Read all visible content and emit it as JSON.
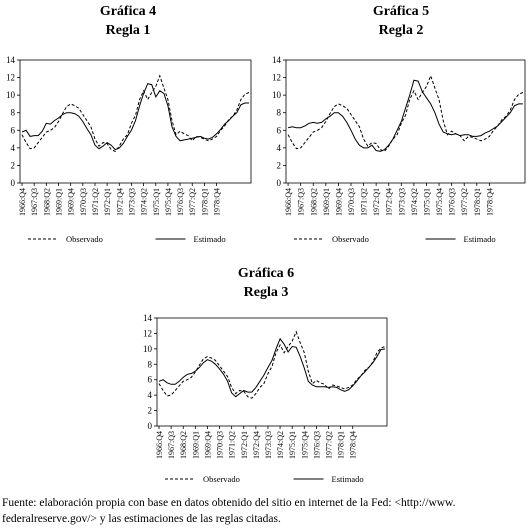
{
  "chart_data": [
    {
      "type": "line",
      "title": "Gráfica 4",
      "subtitle": "Regla 1",
      "ylim": [
        0,
        14
      ],
      "yticks": [
        0,
        2,
        4,
        6,
        8,
        10,
        12,
        14
      ],
      "xtick_labels": [
        "1966:Q4",
        "1967:Q3",
        "1968:Q2",
        "1969:Q1",
        "1969:Q4",
        "1970:Q3",
        "1971:Q2",
        "1972:Q1",
        "1972:Q4",
        "1973:Q3",
        "1974:Q2",
        "1975:Q1",
        "1975:Q4",
        "1976:Q3",
        "1977:Q2",
        "1978:Q1",
        "1978:Q4"
      ],
      "legend_placement": "bottom",
      "series": [
        {
          "name": "Observado",
          "style": "dashed",
          "values": [
            5.5,
            4.6,
            3.9,
            4.0,
            4.6,
            5.2,
            5.8,
            6.0,
            6.3,
            7.0,
            7.9,
            8.7,
            9.0,
            8.8,
            8.5,
            7.8,
            7.1,
            6.4,
            5.0,
            4.2,
            4.6,
            4.5,
            3.8,
            3.6,
            4.2,
            5.0,
            5.5,
            6.8,
            7.7,
            9.5,
            10.5,
            9.5,
            10.3,
            11.0,
            12.2,
            10.8,
            9.5,
            7.1,
            5.5,
            5.9,
            5.6,
            5.4,
            4.8,
            5.3,
            5.2,
            5.0,
            4.8,
            5.0,
            5.3,
            6.0,
            6.5,
            7.2,
            7.6,
            8.3,
            9.5,
            10.1,
            10.3
          ]
        },
        {
          "name": "Estimado",
          "style": "solid",
          "values": [
            5.8,
            6.0,
            5.3,
            5.4,
            5.4,
            5.9,
            6.8,
            6.7,
            7.1,
            7.4,
            7.8,
            8.0,
            8.0,
            7.9,
            7.6,
            7.0,
            6.2,
            5.5,
            4.3,
            3.9,
            4.2,
            4.6,
            4.3,
            3.8,
            4.0,
            4.5,
            5.3,
            6.0,
            7.1,
            8.8,
            10.2,
            11.3,
            11.2,
            9.8,
            10.5,
            10.2,
            8.8,
            6.4,
            5.3,
            4.8,
            4.9,
            5.0,
            5.1,
            5.2,
            5.3,
            5.1,
            5.0,
            5.2,
            5.6,
            6.1,
            6.7,
            7.1,
            7.6,
            8.0,
            8.9,
            9.1,
            9.1
          ]
        }
      ]
    },
    {
      "type": "line",
      "title": "Gráfica 5",
      "subtitle": "Regla 2",
      "ylim": [
        0,
        14
      ],
      "yticks": [
        0,
        2,
        4,
        6,
        8,
        10,
        12,
        14
      ],
      "xtick_labels": [
        "1966:Q4",
        "1967:Q3",
        "1968:Q2",
        "1969:Q1",
        "1969:Q4",
        "1970:Q3",
        "1971:Q2",
        "1972:Q1",
        "1972:Q4",
        "1973:Q3",
        "1974:Q2",
        "1975:Q1",
        "1975:Q4",
        "1976:Q3",
        "1977:Q2",
        "1978:Q1",
        "1978:Q4"
      ],
      "legend_placement": "bottom",
      "series": [
        {
          "name": "Observado",
          "style": "dashed",
          "values": [
            5.5,
            4.6,
            3.9,
            4.0,
            4.6,
            5.2,
            5.8,
            6.0,
            6.3,
            7.0,
            7.9,
            8.7,
            9.0,
            8.8,
            8.5,
            7.8,
            7.1,
            6.4,
            5.0,
            4.2,
            4.6,
            4.5,
            3.8,
            3.6,
            4.2,
            5.0,
            5.5,
            6.8,
            7.7,
            9.5,
            10.5,
            9.5,
            10.3,
            11.0,
            12.2,
            10.8,
            9.5,
            7.1,
            5.5,
            5.9,
            5.6,
            5.4,
            4.8,
            5.3,
            5.2,
            5.0,
            4.8,
            5.0,
            5.3,
            6.0,
            6.5,
            7.2,
            7.6,
            8.3,
            9.5,
            10.1,
            10.3
          ]
        },
        {
          "name": "Estimado",
          "style": "solid",
          "values": [
            6.3,
            6.4,
            6.3,
            6.3,
            6.5,
            6.8,
            6.9,
            6.8,
            6.9,
            7.3,
            7.6,
            8.0,
            8.0,
            7.6,
            6.9,
            6.0,
            5.0,
            4.3,
            4.0,
            4.0,
            4.3,
            3.7,
            3.6,
            3.8,
            4.3,
            5.0,
            6.0,
            7.0,
            8.5,
            10.0,
            11.7,
            11.6,
            10.4,
            9.7,
            9.0,
            8.0,
            6.7,
            5.8,
            5.6,
            5.5,
            5.6,
            5.4,
            5.5,
            5.5,
            5.3,
            5.3,
            5.4,
            5.7,
            5.9,
            6.2,
            6.5,
            7.0,
            7.5,
            8.0,
            8.8,
            9.0,
            9.0
          ]
        }
      ]
    },
    {
      "type": "line",
      "title": "Gráfica 6",
      "subtitle": "Regla 3",
      "ylim": [
        0,
        14
      ],
      "yticks": [
        0,
        2,
        4,
        6,
        8,
        10,
        12,
        14
      ],
      "xtick_labels": [
        "1966:Q4",
        "1967:Q3",
        "1968:Q2",
        "1969:Q1",
        "1969:Q4",
        "1970:Q3",
        "1971:Q2",
        "1972:Q1",
        "1972:Q4",
        "1973:Q3",
        "1974:Q2",
        "1975:Q1",
        "1975:Q4",
        "1976:Q3",
        "1977:Q2",
        "1978:Q1",
        "1978:Q4"
      ],
      "legend_placement": "bottom",
      "series": [
        {
          "name": "Observado",
          "style": "dashed",
          "values": [
            5.5,
            4.6,
            3.9,
            4.0,
            4.6,
            5.2,
            5.8,
            6.0,
            6.3,
            7.0,
            7.9,
            8.7,
            9.0,
            8.8,
            8.5,
            7.8,
            7.1,
            6.4,
            5.0,
            4.2,
            4.6,
            4.5,
            3.8,
            3.6,
            4.2,
            5.0,
            5.5,
            6.8,
            7.7,
            9.5,
            10.5,
            9.5,
            10.3,
            11.0,
            12.2,
            10.8,
            9.5,
            7.1,
            5.5,
            5.9,
            5.6,
            5.4,
            4.8,
            5.3,
            5.2,
            5.0,
            4.8,
            5.0,
            5.3,
            6.0,
            6.5,
            7.2,
            7.6,
            8.3,
            9.5,
            10.1,
            10.3
          ]
        },
        {
          "name": "Estimado",
          "style": "solid",
          "values": [
            5.8,
            6.0,
            5.6,
            5.4,
            5.4,
            5.8,
            6.3,
            6.7,
            6.8,
            7.1,
            7.6,
            8.2,
            8.6,
            8.4,
            8.0,
            7.4,
            6.7,
            5.8,
            4.3,
            3.8,
            4.2,
            4.6,
            4.4,
            4.4,
            5.0,
            5.8,
            6.6,
            7.6,
            8.5,
            10.0,
            11.3,
            10.6,
            9.6,
            10.3,
            10.2,
            9.0,
            7.5,
            5.8,
            5.3,
            5.1,
            5.1,
            5.1,
            5.0,
            5.1,
            5.0,
            4.7,
            4.5,
            4.7,
            5.2,
            5.8,
            6.5,
            7.0,
            7.6,
            8.2,
            9.0,
            9.9,
            10.0
          ]
        }
      ]
    }
  ],
  "source_note": {
    "line1": "Fuente: elaboración propia con base en datos obtenido del sitio en internet de la Fed: <http://www.",
    "line2": "federalreserve.gov/> y las estimaciones de las reglas citadas."
  }
}
